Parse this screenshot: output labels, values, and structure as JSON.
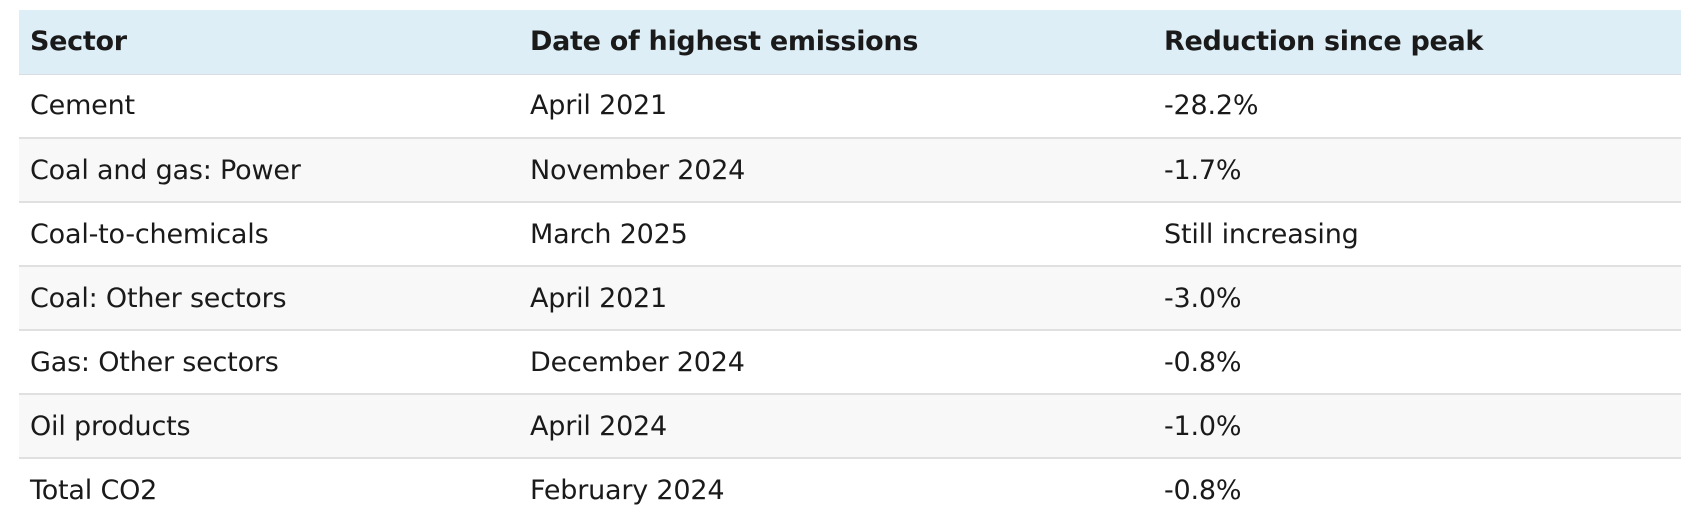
{
  "table": {
    "headers": [
      "Sector",
      "Date of highest emissions",
      "Reduction since peak"
    ],
    "rows": [
      [
        "Cement",
        "April 2021",
        "-28.2%"
      ],
      [
        "Coal and gas: Power",
        "November 2024",
        "-1.7%"
      ],
      [
        "Coal-to-chemicals",
        "March 2025",
        "Still increasing"
      ],
      [
        "Coal: Other sectors",
        "April 2021",
        "-3.0%"
      ],
      [
        "Gas: Other sectors",
        "December 2024",
        "-0.8%"
      ],
      [
        "Oil products",
        "April 2024",
        "-1.0%"
      ],
      [
        "Total CO2",
        "February 2024",
        "-0.8%"
      ]
    ]
  },
  "colors": {
    "header_background": "#ddeef7",
    "row_alt_background": "#f8f8f8",
    "row_divider": "#e0e0e0",
    "text": "#1a1a1a"
  }
}
